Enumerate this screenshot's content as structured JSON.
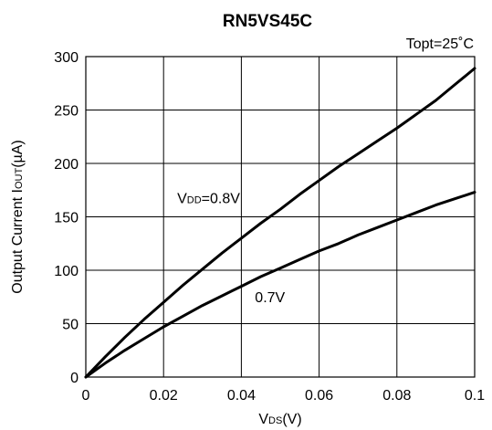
{
  "chart_data": {
    "type": "line",
    "title": "RN5VS45C",
    "condition": "Topt=25˚C",
    "xlabel": {
      "main": "V",
      "sub": "DS",
      "suffix": "(V)"
    },
    "ylabel": {
      "main": "Output Current I",
      "sub": "OUT",
      "suffix": "(µA)"
    },
    "xlim": [
      0,
      0.1
    ],
    "ylim": [
      0,
      300
    ],
    "xticks": [
      0,
      0.02,
      0.04,
      0.06,
      0.08,
      0.1
    ],
    "xtick_labels": [
      "0",
      "0.02",
      "0.04",
      "0.06",
      "0.08",
      "0.1"
    ],
    "yticks": [
      0,
      50,
      100,
      150,
      200,
      250,
      300
    ],
    "ytick_labels": [
      "0",
      "50",
      "100",
      "150",
      "200",
      "250",
      "300"
    ],
    "grid": true,
    "series": [
      {
        "x": [
          0,
          0.005,
          0.01,
          0.015,
          0.02,
          0.025,
          0.03,
          0.035,
          0.04,
          0.045,
          0.05,
          0.055,
          0.06,
          0.065,
          0.07,
          0.075,
          0.08,
          0.085,
          0.09,
          0.095,
          0.1
        ],
        "y": [
          0,
          19,
          37,
          54,
          70,
          86,
          101,
          116,
          130,
          144,
          157,
          171,
          184,
          197,
          209,
          221,
          233,
          246,
          259,
          274,
          289
        ]
      },
      {
        "x": [
          0,
          0.005,
          0.01,
          0.015,
          0.02,
          0.025,
          0.03,
          0.035,
          0.04,
          0.045,
          0.05,
          0.055,
          0.06,
          0.065,
          0.07,
          0.075,
          0.08,
          0.085,
          0.09,
          0.095,
          0.1
        ],
        "y": [
          0,
          13,
          25,
          36,
          47,
          57,
          67,
          76,
          85,
          94,
          102,
          110,
          118,
          125,
          133,
          140,
          147,
          154,
          161,
          167,
          173
        ]
      }
    ],
    "annotations": [
      {
        "main": "V",
        "sub": "DD",
        "suffix": "=0.8V",
        "x": 0.0235,
        "y": 163
      },
      {
        "text": "0.7V",
        "x": 0.0435,
        "y": 70
      }
    ]
  }
}
